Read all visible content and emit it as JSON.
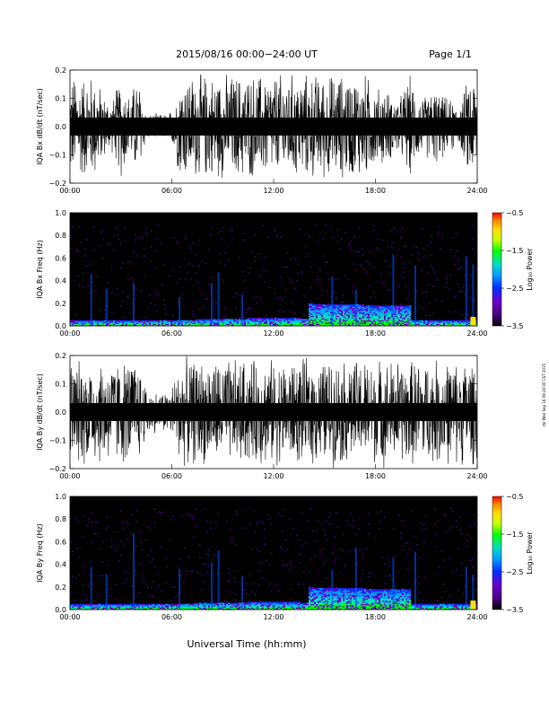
{
  "header": {
    "title": "2015/08/16  00:00−24:00 UT",
    "page": "Page 1/1"
  },
  "footer": {
    "xlabel": "Universal Time (hh:mm)",
    "side_note": "rbl Wed Sep 16 09:20:00 CST 2015"
  },
  "colors": {
    "trace": "#000000",
    "colorbar": [
      "#000000",
      "#4b0082",
      "#6600cc",
      "#0044ff",
      "#00aaff",
      "#00e0c0",
      "#00ff00",
      "#ccff00",
      "#ffdd00",
      "#ff8800",
      "#ff0000"
    ]
  },
  "chart_data": [
    {
      "type": "line",
      "ylabel": "IQA Bx dB/dt (nT/sec)",
      "xticks": [
        "00:00",
        "06:00",
        "12:00",
        "18:00",
        "24:00"
      ],
      "yticks": [
        "0.2",
        "0.1",
        "0.0",
        "−0.1",
        "−0.2"
      ],
      "ylim": [
        -0.2,
        0.2
      ],
      "xlim_hours": [
        0,
        24
      ],
      "series": [
        {
          "values_note": "",
          "envelope_hours": [
            0,
            0.5,
            1,
            1.5,
            2,
            2.5,
            3,
            3.5,
            4,
            4.5,
            5,
            5.5,
            6,
            6.5,
            7,
            7.5,
            8,
            8.5,
            9,
            9.5,
            10,
            10.5,
            11,
            11.5,
            12,
            12.5,
            13,
            13.5,
            14,
            14.5,
            15,
            15.5,
            16,
            16.5,
            17,
            17.5,
            18,
            18.5,
            19,
            19.5,
            20,
            20.5,
            21,
            21.5,
            22,
            22.5,
            23,
            23.5,
            24
          ],
          "envelope_amplitude": [
            0.2,
            0.2,
            0.2,
            0.2,
            0.12,
            0.1,
            0.2,
            0.12,
            0.2,
            0.05,
            0.05,
            0.05,
            0.06,
            0.2,
            0.2,
            0.2,
            0.2,
            0.2,
            0.2,
            0.2,
            0.2,
            0.2,
            0.2,
            0.2,
            0.2,
            0.2,
            0.2,
            0.2,
            0.2,
            0.2,
            0.2,
            0.2,
            0.2,
            0.2,
            0.2,
            0.2,
            0.15,
            0.15,
            0.12,
            0.12,
            0.2,
            0.12,
            0.12,
            0.15,
            0.12,
            0.1,
            0.08,
            0.2,
            0.2
          ]
        }
      ]
    },
    {
      "type": "heatmap",
      "ylabel": "IQA Bx Freq (Hz)",
      "xticks": [
        "00:00",
        "06:00",
        "12:00",
        "18:00",
        "24:00"
      ],
      "yticks": [
        "1.0",
        "0.8",
        "0.6",
        "0.4",
        "0.2",
        "0.0"
      ],
      "ylim": [
        0,
        1.0
      ],
      "colorbar": {
        "label": "Log₁₀ Power",
        "ticks": [
          "−0.5",
          "−1.5",
          "−2.5",
          "−3.5"
        ],
        "range": [
          -3.5,
          -0.5
        ]
      }
    },
    {
      "type": "line",
      "ylabel": "IQA By dB/dt (nT/sec)",
      "xticks": [
        "00:00",
        "06:00",
        "12:00",
        "18:00",
        "24:00"
      ],
      "yticks": [
        "0.2",
        "0.1",
        "0.0",
        "−0.1",
        "−0.2"
      ],
      "ylim": [
        -0.2,
        0.2
      ],
      "xlim_hours": [
        0,
        24
      ],
      "series": [
        {
          "values_note": "",
          "envelope_hours": [
            0,
            0.5,
            1,
            1.5,
            2,
            2.5,
            3,
            3.5,
            4,
            4.5,
            5,
            5.5,
            6,
            6.5,
            7,
            7.5,
            8,
            8.5,
            9,
            9.5,
            10,
            10.5,
            11,
            11.5,
            12,
            12.5,
            13,
            13.5,
            14,
            14.5,
            15,
            15.5,
            16,
            16.5,
            17,
            17.5,
            18,
            18.5,
            19,
            19.5,
            20,
            20.5,
            21,
            21.5,
            22,
            22.5,
            23,
            23.5,
            24
          ],
          "envelope_amplitude": [
            0.2,
            0.2,
            0.2,
            0.2,
            0.2,
            0.2,
            0.2,
            0.2,
            0.2,
            0.1,
            0.08,
            0.08,
            0.1,
            0.2,
            0.2,
            0.2,
            0.2,
            0.2,
            0.2,
            0.2,
            0.2,
            0.2,
            0.2,
            0.2,
            0.2,
            0.2,
            0.2,
            0.2,
            0.2,
            0.2,
            0.2,
            0.2,
            0.2,
            0.2,
            0.2,
            0.2,
            0.2,
            0.2,
            0.2,
            0.2,
            0.2,
            0.2,
            0.2,
            0.2,
            0.2,
            0.2,
            0.2,
            0.2,
            0.2
          ]
        }
      ]
    },
    {
      "type": "heatmap",
      "ylabel": "IQA By Freq (Hz)",
      "xticks": [
        "00:00",
        "06:00",
        "12:00",
        "18:00",
        "24:00"
      ],
      "yticks": [
        "1.0",
        "0.8",
        "0.6",
        "0.4",
        "0.2",
        "0.0"
      ],
      "ylim": [
        0,
        1.0
      ],
      "colorbar": {
        "label": "Log₁₀ Power",
        "ticks": [
          "−0.5",
          "−1.5",
          "−2.5",
          "−3.5"
        ],
        "range": [
          -3.5,
          -0.5
        ]
      }
    }
  ]
}
